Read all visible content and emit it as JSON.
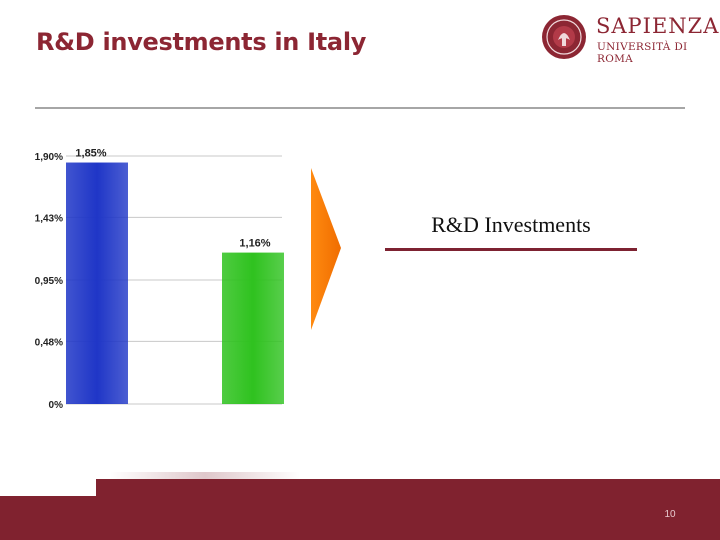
{
  "slide": {
    "title": "R&D investments in Italy",
    "page_number": "10"
  },
  "logo": {
    "name": "SAPIENZA",
    "subtitle": "UNIVERSITÀ DI ROMA",
    "color": "#8c2633"
  },
  "callout": {
    "label": "R&D Investments"
  },
  "colors": {
    "brand": "#8c2633",
    "footer": "#80222f",
    "arrow": "#f77f00",
    "bar_blue": "#1f36c7",
    "bar_green": "#2fc21f"
  },
  "chart_data": {
    "type": "bar",
    "title": "",
    "xlabel": "",
    "ylabel": "",
    "categories": [
      "",
      ""
    ],
    "values": [
      1.85,
      1.16
    ],
    "value_labels": [
      "1,85%",
      "1,16%"
    ],
    "bar_colors": [
      "#1f36c7",
      "#2fc21f"
    ],
    "ylim": [
      0,
      1.9
    ],
    "yticks": [
      0,
      0.48,
      0.95,
      1.43,
      1.9
    ],
    "ytick_labels": [
      "0%",
      "0,48%",
      "0,95%",
      "1,43%",
      "1,90%"
    ],
    "grid": true,
    "legend": "none"
  }
}
